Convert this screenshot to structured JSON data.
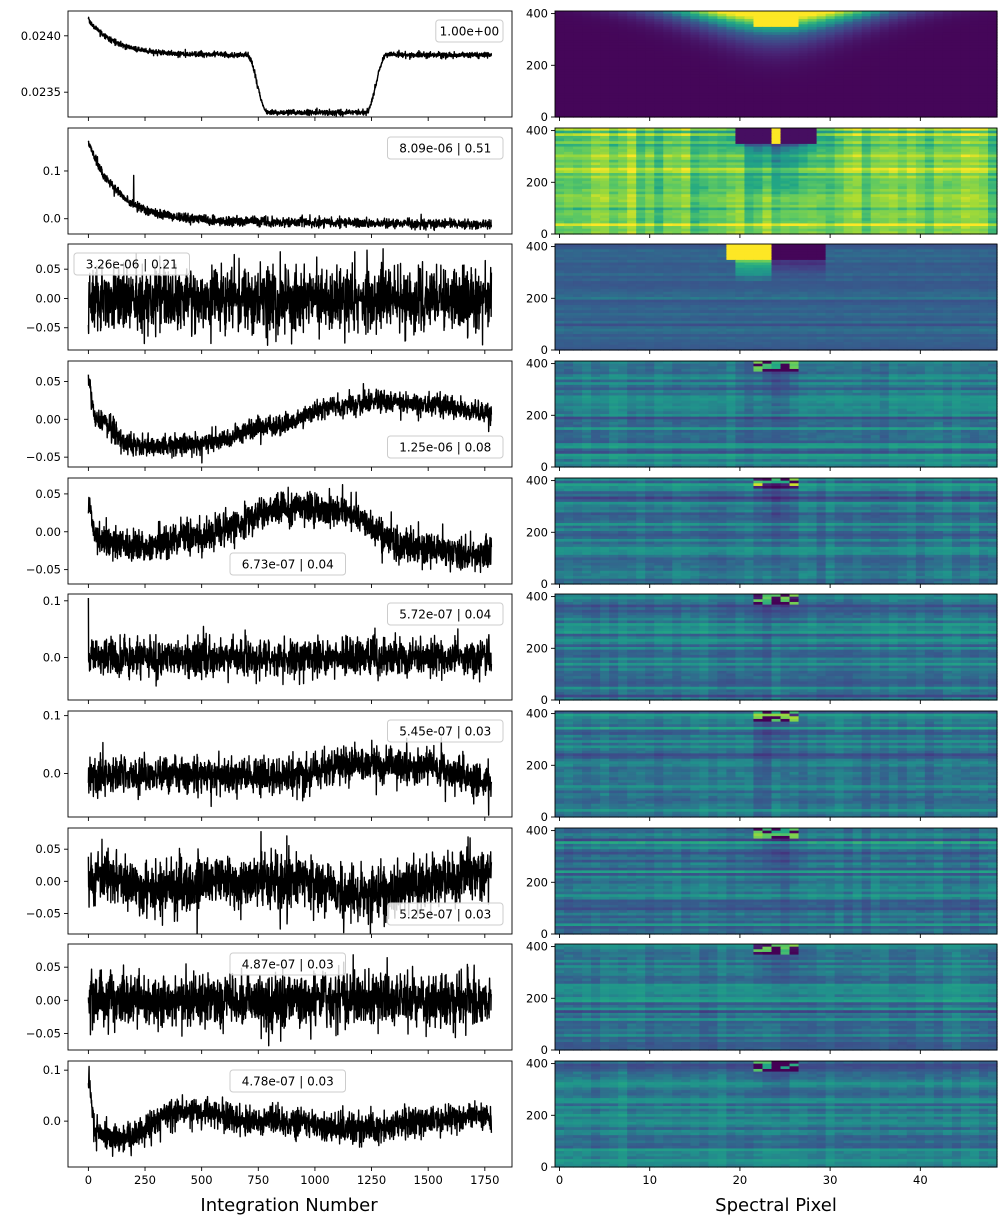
{
  "figure": {
    "xlabel_left": "Integration Number",
    "xlabel_right": "Spectral Pixel"
  },
  "chart_data": [
    {
      "type": "line",
      "panel": 1,
      "annotation": "1.00e+00",
      "annotation_position": "top-right",
      "xlim": [
        -90,
        1870
      ],
      "ylim": [
        0.02328,
        0.02422
      ],
      "x_ticks": [
        0,
        250,
        500,
        750,
        1000,
        1250,
        1500,
        1750
      ],
      "y_ticks": [
        0.0235,
        0.024
      ],
      "y_tick_labels": [
        "0.0235",
        "0.0240"
      ],
      "x_ticks_labeled": false,
      "model": "transit",
      "params": {
        "start": 0.02414,
        "plateau": 0.02383,
        "depth": 0.02332,
        "ingress": [
          700,
          790
        ],
        "egress": [
          1225,
          1315
        ],
        "noise": 1.2e-05,
        "decay": 0.00028,
        "decay_tau": 120
      }
    },
    {
      "type": "line",
      "panel": 2,
      "annotation": "8.09e-06 | 0.51",
      "annotation_position": "top-right",
      "xlim": [
        -90,
        1870
      ],
      "ylim": [
        -0.032,
        0.19
      ],
      "x_ticks": [
        0,
        250,
        500,
        750,
        1000,
        1250,
        1500,
        1750
      ],
      "y_ticks": [
        0.0,
        0.1
      ],
      "y_tick_labels": [
        "0.0",
        "0.1"
      ],
      "x_ticks_labeled": false,
      "model": "decay",
      "params": {
        "start": 0.16,
        "tau": 130,
        "base": -0.003,
        "slope_end": -0.012,
        "noise": 0.005
      }
    },
    {
      "type": "line",
      "panel": 3,
      "annotation": "3.26e-06 | 0.21",
      "annotation_position": "top-left",
      "xlim": [
        -90,
        1870
      ],
      "ylim": [
        -0.088,
        0.093
      ],
      "x_ticks": [
        0,
        250,
        500,
        750,
        1000,
        1250,
        1500,
        1750
      ],
      "y_ticks": [
        -0.05,
        0.0,
        0.05
      ],
      "y_tick_labels": [
        "−0.05",
        "0.00",
        "0.05"
      ],
      "x_ticks_labeled": false,
      "model": "noise",
      "params": {
        "amp": 0.028,
        "trend_amp": 0.0
      }
    },
    {
      "type": "line",
      "panel": 4,
      "annotation": "1.25e-06 | 0.08",
      "annotation_position": "bottom-right",
      "xlim": [
        -90,
        1870
      ],
      "ylim": [
        -0.063,
        0.077
      ],
      "x_ticks": [
        0,
        250,
        500,
        750,
        1000,
        1250,
        1500,
        1750
      ],
      "y_ticks": [
        -0.05,
        0.0,
        0.05
      ],
      "y_tick_labels": [
        "−0.05",
        "0.00",
        "0.05"
      ],
      "x_ticks_labeled": false,
      "model": "smooth",
      "params": {
        "knots_x": [
          0,
          30,
          200,
          500,
          800,
          1100,
          1300,
          1500,
          1780
        ],
        "knots_y": [
          0.05,
          0.0,
          -0.035,
          -0.032,
          -0.01,
          0.018,
          0.025,
          0.02,
          0.01
        ],
        "noise": 0.007
      }
    },
    {
      "type": "line",
      "panel": 5,
      "annotation": "6.73e-07 | 0.04",
      "annotation_position": "bottom-center",
      "xlim": [
        -90,
        1870
      ],
      "ylim": [
        -0.069,
        0.071
      ],
      "x_ticks": [
        0,
        250,
        500,
        750,
        1000,
        1250,
        1500,
        1750
      ],
      "y_ticks": [
        -0.05,
        0.0,
        0.05
      ],
      "y_tick_labels": [
        "−0.05",
        "0.00",
        "0.05"
      ],
      "x_ticks_labeled": false,
      "model": "smooth",
      "params": {
        "knots_x": [
          0,
          30,
          200,
          500,
          850,
          1100,
          1400,
          1780
        ],
        "knots_y": [
          0.04,
          -0.01,
          -0.02,
          -0.005,
          0.03,
          0.03,
          -0.02,
          -0.03
        ],
        "noise": 0.011
      }
    },
    {
      "type": "line",
      "panel": 6,
      "annotation": "5.72e-07 | 0.04",
      "annotation_position": "top-right",
      "xlim": [
        -90,
        1870
      ],
      "ylim": [
        -0.075,
        0.112
      ],
      "x_ticks": [
        0,
        250,
        500,
        750,
        1000,
        1250,
        1500,
        1750
      ],
      "y_ticks": [
        0.0,
        0.1
      ],
      "y_tick_labels": [
        "0.0",
        "0.1"
      ],
      "x_ticks_labeled": false,
      "model": "noise",
      "params": {
        "amp": 0.016,
        "spike_at": 0,
        "spike_val": 0.105
      }
    },
    {
      "type": "line",
      "panel": 7,
      "annotation": "5.45e-07 | 0.03",
      "annotation_position": "top-right",
      "xlim": [
        -90,
        1870
      ],
      "ylim": [
        -0.075,
        0.108
      ],
      "x_ticks": [
        0,
        250,
        500,
        750,
        1000,
        1250,
        1500,
        1750
      ],
      "y_ticks": [
        0.0,
        0.1
      ],
      "y_tick_labels": [
        "0.0",
        "0.1"
      ],
      "x_ticks_labeled": false,
      "model": "smooth",
      "params": {
        "knots_x": [
          0,
          400,
          800,
          1200,
          1500,
          1780
        ],
        "knots_y": [
          -0.005,
          0.0,
          -0.005,
          0.015,
          0.01,
          -0.015
        ],
        "noise": 0.016
      }
    },
    {
      "type": "line",
      "panel": 8,
      "annotation": "5.25e-07 | 0.03",
      "annotation_position": "bottom-right",
      "xlim": [
        -90,
        1870
      ],
      "ylim": [
        -0.082,
        0.083
      ],
      "x_ticks": [
        0,
        250,
        500,
        750,
        1000,
        1250,
        1500,
        1750
      ],
      "y_ticks": [
        -0.05,
        0.0,
        0.05
      ],
      "y_tick_labels": [
        "−0.05",
        "0.00",
        "0.05"
      ],
      "x_ticks_labeled": false,
      "model": "smooth",
      "params": {
        "knots_x": [
          0,
          300,
          600,
          900,
          1250,
          1500,
          1780
        ],
        "knots_y": [
          0.01,
          -0.01,
          0.0,
          0.0,
          -0.02,
          0.0,
          0.015
        ],
        "noise": 0.02
      }
    },
    {
      "type": "line",
      "panel": 9,
      "annotation": "4.87e-07 | 0.03",
      "annotation_position": "top-center",
      "xlim": [
        -90,
        1870
      ],
      "ylim": [
        -0.075,
        0.085
      ],
      "x_ticks": [
        0,
        250,
        500,
        750,
        1000,
        1250,
        1500,
        1750
      ],
      "y_ticks": [
        -0.05,
        0.0,
        0.05
      ],
      "y_tick_labels": [
        "−0.05",
        "0.00",
        "0.05"
      ],
      "x_ticks_labeled": false,
      "model": "noise",
      "params": {
        "amp": 0.02
      }
    },
    {
      "type": "line",
      "panel": 10,
      "annotation": "4.78e-07 | 0.03",
      "annotation_position": "top-center",
      "xlim": [
        -90,
        1870
      ],
      "ylim": [
        -0.09,
        0.118
      ],
      "x_ticks": [
        0,
        250,
        500,
        750,
        1000,
        1250,
        1500,
        1750
      ],
      "x_tick_labels": [
        "0",
        "250",
        "500",
        "750",
        "1000",
        "1250",
        "1500",
        "1750"
      ],
      "y_ticks": [
        0.0,
        0.1
      ],
      "y_tick_labels": [
        "0.0",
        "0.1"
      ],
      "x_ticks_labeled": true,
      "model": "smooth",
      "params": {
        "knots_x": [
          0,
          30,
          150,
          400,
          800,
          1200,
          1500,
          1780
        ],
        "knots_y": [
          0.09,
          -0.02,
          -0.035,
          0.02,
          0.0,
          -0.015,
          0.0,
          0.01
        ],
        "noise": 0.014
      }
    },
    {
      "type": "heatmap",
      "panel": 1,
      "xlim": [
        -0.5,
        48.5
      ],
      "ylim": [
        0,
        410
      ],
      "x_ticks": [
        0,
        10,
        20,
        30,
        40
      ],
      "y_ticks": [
        0,
        200,
        400
      ],
      "x_ticks_labeled": false,
      "pattern": "bright",
      "colormap": "viridis"
    },
    {
      "type": "heatmap",
      "panel": 2,
      "xlim": [
        -0.5,
        48.5
      ],
      "ylim": [
        0,
        410
      ],
      "x_ticks": [
        0,
        10,
        20,
        30,
        40
      ],
      "y_ticks": [
        0,
        200,
        400
      ],
      "x_ticks_labeled": false,
      "pattern": "dark-core",
      "colormap": "viridis"
    },
    {
      "type": "heatmap",
      "panel": 3,
      "xlim": [
        -0.5,
        48.5
      ],
      "ylim": [
        0,
        410
      ],
      "x_ticks": [
        0,
        10,
        20,
        30,
        40
      ],
      "y_ticks": [
        0,
        200,
        400
      ],
      "x_ticks_labeled": false,
      "pattern": "split",
      "colormap": "viridis"
    },
    {
      "type": "heatmap",
      "panel": 4,
      "xlim": [
        -0.5,
        48.5
      ],
      "ylim": [
        0,
        410
      ],
      "x_ticks": [
        0,
        10,
        20,
        30,
        40
      ],
      "y_ticks": [
        0,
        200,
        400
      ],
      "x_ticks_labeled": false,
      "pattern": "faint",
      "colormap": "viridis"
    },
    {
      "type": "heatmap",
      "panel": 5,
      "xlim": [
        -0.5,
        48.5
      ],
      "ylim": [
        0,
        410
      ],
      "x_ticks": [
        0,
        10,
        20,
        30,
        40
      ],
      "y_ticks": [
        0,
        200,
        400
      ],
      "x_ticks_labeled": false,
      "pattern": "faint",
      "colormap": "viridis"
    },
    {
      "type": "heatmap",
      "panel": 6,
      "xlim": [
        -0.5,
        48.5
      ],
      "ylim": [
        0,
        410
      ],
      "x_ticks": [
        0,
        10,
        20,
        30,
        40
      ],
      "y_ticks": [
        0,
        200,
        400
      ],
      "x_ticks_labeled": false,
      "pattern": "faint",
      "colormap": "viridis"
    },
    {
      "type": "heatmap",
      "panel": 7,
      "xlim": [
        -0.5,
        48.5
      ],
      "ylim": [
        0,
        410
      ],
      "x_ticks": [
        0,
        10,
        20,
        30,
        40
      ],
      "y_ticks": [
        0,
        200,
        400
      ],
      "x_ticks_labeled": false,
      "pattern": "faint",
      "colormap": "viridis"
    },
    {
      "type": "heatmap",
      "panel": 8,
      "xlim": [
        -0.5,
        48.5
      ],
      "ylim": [
        0,
        410
      ],
      "x_ticks": [
        0,
        10,
        20,
        30,
        40
      ],
      "y_ticks": [
        0,
        200,
        400
      ],
      "x_ticks_labeled": false,
      "pattern": "faint",
      "colormap": "viridis"
    },
    {
      "type": "heatmap",
      "panel": 9,
      "xlim": [
        -0.5,
        48.5
      ],
      "ylim": [
        0,
        410
      ],
      "x_ticks": [
        0,
        10,
        20,
        30,
        40
      ],
      "y_ticks": [
        0,
        200,
        400
      ],
      "x_ticks_labeled": false,
      "pattern": "faint",
      "colormap": "viridis"
    },
    {
      "type": "heatmap",
      "panel": 10,
      "xlim": [
        -0.5,
        48.5
      ],
      "ylim": [
        0,
        410
      ],
      "x_ticks": [
        0,
        10,
        20,
        30,
        40
      ],
      "x_tick_labels": [
        "0",
        "10",
        "20",
        "30",
        "40"
      ],
      "y_ticks": [
        0,
        200,
        400
      ],
      "x_ticks_labeled": true,
      "pattern": "faint",
      "colormap": "viridis"
    }
  ]
}
